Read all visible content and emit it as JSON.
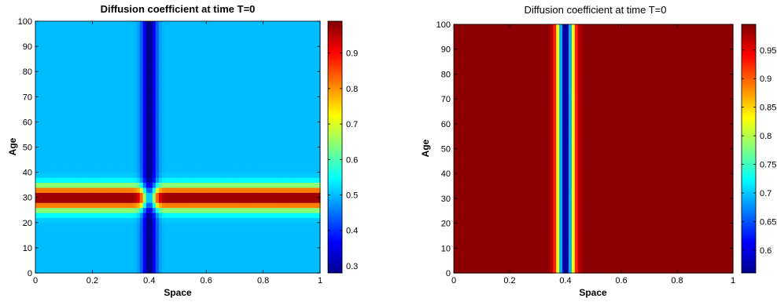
{
  "chart_data": [
    {
      "type": "heatmap",
      "title": "Diffusion coefficient at time T=0",
      "xlabel": "Space",
      "ylabel": "Age",
      "xlim": [
        0,
        1
      ],
      "ylim": [
        0,
        100
      ],
      "x_ticks": [
        "0",
        "0.2",
        "0.4",
        "0.6",
        "0.8",
        "1"
      ],
      "y_ticks": [
        "0",
        "10",
        "20",
        "30",
        "40",
        "50",
        "60",
        "70",
        "80",
        "90",
        "100"
      ],
      "colormap": "jet",
      "colorbar": {
        "range": [
          0.28,
          0.99
        ],
        "ticks": [
          "0.3",
          "0.4",
          "0.5",
          "0.6",
          "0.7",
          "0.8",
          "0.9"
        ]
      },
      "field": {
        "background": 0.5,
        "space_band": {
          "center": 0.4,
          "width": 0.025,
          "value": 0.28
        },
        "age_band": {
          "center": 30,
          "width": 4.5,
          "value": 0.99
        }
      }
    },
    {
      "type": "heatmap",
      "title": "Diffusion coefficient at time T=0",
      "xlabel": "Space",
      "ylabel": "Age",
      "xlim": [
        0,
        1
      ],
      "ylim": [
        0,
        100
      ],
      "x_ticks": [
        "0",
        "0.2",
        "0.4",
        "0.6",
        "0.8",
        "1"
      ],
      "y_ticks": [
        "0",
        "10",
        "20",
        "30",
        "40",
        "50",
        "60",
        "70",
        "80",
        "90",
        "100"
      ],
      "colormap": "jet",
      "colorbar": {
        "range": [
          0.56,
          0.995
        ],
        "ticks": [
          "0.6",
          "0.65",
          "0.7",
          "0.75",
          "0.8",
          "0.85",
          "0.9",
          "0.95"
        ]
      },
      "field": {
        "background": 0.99,
        "space_band": {
          "center": 0.4,
          "width": 0.028,
          "value": 0.56
        }
      }
    }
  ]
}
